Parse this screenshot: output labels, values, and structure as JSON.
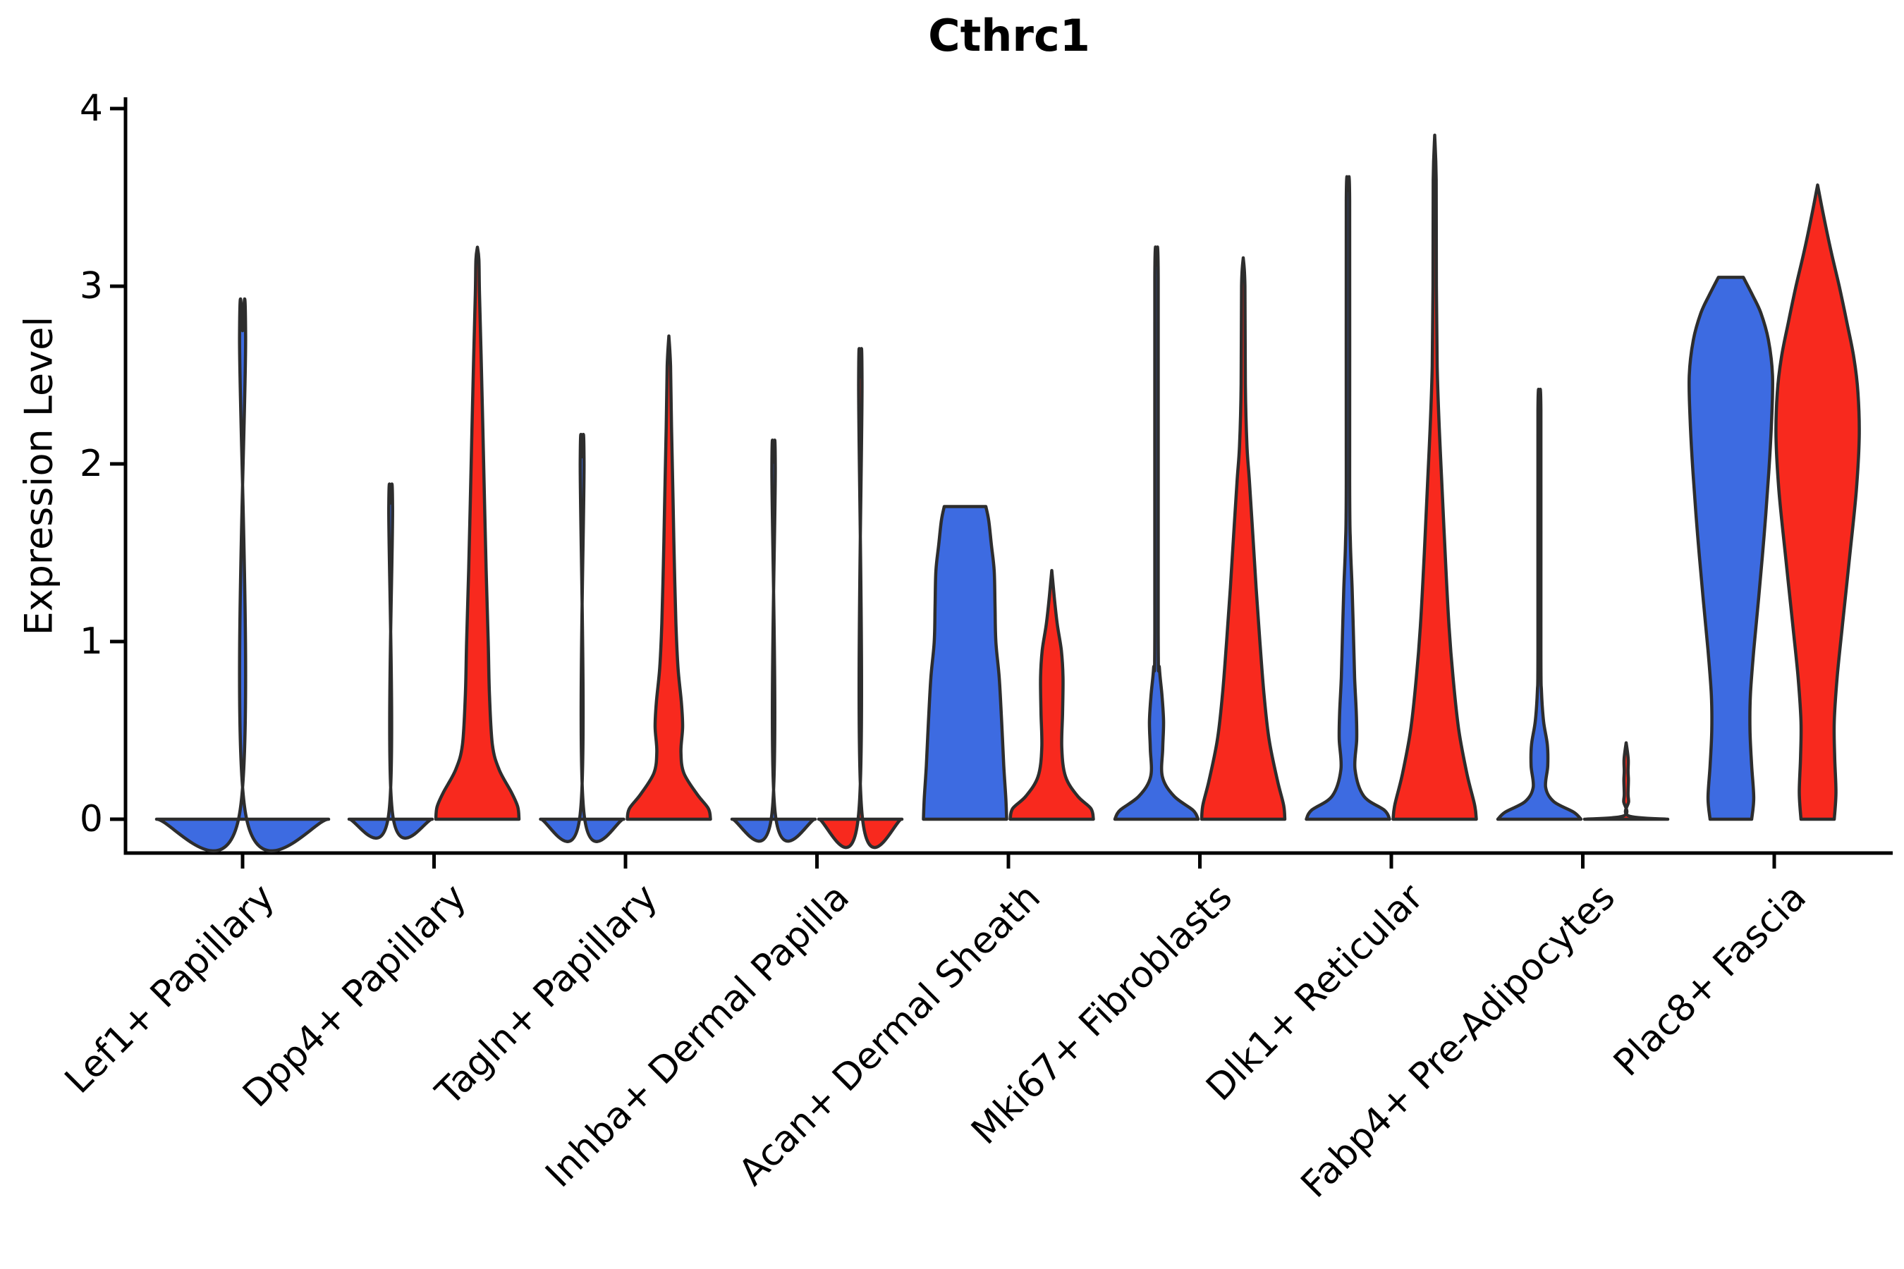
{
  "title": "Cthrc1",
  "y_axis": {
    "label": "Expression Level",
    "ticks": [
      "0",
      "1",
      "2",
      "3",
      "4"
    ]
  },
  "x_axis": {
    "categories": [
      "Lef1+ Papillary",
      "Dpp4+ Papillary",
      "Tagln+ Papillary",
      "Inhba+ Dermal Papilla",
      "Acan+ Dermal Sheath",
      "Mki67+ Fibroblasts",
      "Dlk1+ Reticular",
      "Fabp4+ Pre-Adipocytes",
      "Plac8+ Fascia"
    ]
  },
  "colors": {
    "blue": "#3D6BE1",
    "red": "#F8291E",
    "outline": "#2D2D2D"
  },
  "chart_data": {
    "type": "violin",
    "title": "Cthrc1",
    "ylabel": "Expression Level",
    "ylim": [
      0,
      4
    ],
    "yticks": [
      0,
      1,
      2,
      3,
      4
    ],
    "grid": false,
    "legend": "none",
    "categories": [
      "Lef1+ Papillary",
      "Dpp4+ Papillary",
      "Tagln+ Papillary",
      "Inhba+ Dermal Papilla",
      "Acan+ Dermal Sheath",
      "Mki67+ Fibroblasts",
      "Dlk1+ Reticular",
      "Fabp4+ Pre-Adipocytes",
      "Plac8+ Fascia"
    ],
    "series_colors": {
      "blue": "#3D6BE1",
      "red": "#F8291E"
    },
    "groups": [
      {
        "category": "Lef1+ Papillary",
        "violins": [
          {
            "series": "single",
            "color": "blue",
            "max": 2.75,
            "wide": true,
            "profile": [
              [
                0,
                1
              ],
              [
                0.03,
                0.035
              ],
              [
                2.72,
                0.035
              ],
              [
                2.75,
                0
              ]
            ]
          }
        ]
      },
      {
        "category": "Dpp4+ Papillary",
        "violins": [
          {
            "series": "blue",
            "color": "blue",
            "max": 1.78,
            "profile": [
              [
                0,
                1
              ],
              [
                0.03,
                0.045
              ],
              [
                1.75,
                0.045
              ],
              [
                1.78,
                0
              ]
            ]
          },
          {
            "series": "red",
            "color": "red",
            "max": 3.22,
            "profile": [
              [
                0,
                1
              ],
              [
                0.07,
                0.97
              ],
              [
                0.15,
                0.82
              ],
              [
                0.28,
                0.52
              ],
              [
                0.42,
                0.36
              ],
              [
                0.7,
                0.29
              ],
              [
                1.0,
                0.26
              ],
              [
                1.4,
                0.21
              ],
              [
                1.8,
                0.17
              ],
              [
                2.2,
                0.13
              ],
              [
                2.6,
                0.09
              ],
              [
                2.95,
                0.05
              ],
              [
                3.15,
                0.035
              ],
              [
                3.22,
                0
              ]
            ]
          }
        ]
      },
      {
        "category": "Tagln+ Papillary",
        "violins": [
          {
            "series": "blue",
            "color": "blue",
            "max": 2.04,
            "profile": [
              [
                0,
                1
              ],
              [
                0.03,
                0.045
              ],
              [
                2.01,
                0.045
              ],
              [
                2.04,
                0
              ]
            ]
          },
          {
            "series": "red",
            "color": "red",
            "max": 2.72,
            "profile": [
              [
                0,
                1
              ],
              [
                0.06,
                0.95
              ],
              [
                0.14,
                0.68
              ],
              [
                0.26,
                0.36
              ],
              [
                0.38,
                0.29
              ],
              [
                0.52,
                0.33
              ],
              [
                0.66,
                0.3
              ],
              [
                0.85,
                0.22
              ],
              [
                1.1,
                0.17
              ],
              [
                1.45,
                0.13
              ],
              [
                1.8,
                0.1
              ],
              [
                2.2,
                0.065
              ],
              [
                2.55,
                0.04
              ],
              [
                2.72,
                0
              ]
            ]
          }
        ]
      },
      {
        "category": "Inhba+ Dermal Papilla",
        "violins": [
          {
            "series": "blue",
            "color": "blue",
            "max": 2.01,
            "profile": [
              [
                0,
                1
              ],
              [
                0.03,
                0.04
              ],
              [
                1.98,
                0.04
              ],
              [
                2.01,
                0
              ]
            ]
          },
          {
            "series": "red",
            "color": "red",
            "max": 2.49,
            "profile": [
              [
                0,
                1
              ],
              [
                0.03,
                0.04
              ],
              [
                2.46,
                0.04
              ],
              [
                2.49,
                0
              ]
            ]
          }
        ]
      },
      {
        "category": "Acan+ Dermal Sheath",
        "violins": [
          {
            "series": "blue",
            "color": "blue",
            "max": 1.76,
            "profile": [
              [
                0,
                1
              ],
              [
                0.12,
                0.98
              ],
              [
                0.3,
                0.93
              ],
              [
                0.55,
                0.88
              ],
              [
                0.8,
                0.82
              ],
              [
                1.0,
                0.74
              ],
              [
                1.2,
                0.72
              ],
              [
                1.4,
                0.7
              ],
              [
                1.55,
                0.63
              ],
              [
                1.68,
                0.57
              ],
              [
                1.76,
                0.5
              ]
            ]
          },
          {
            "series": "red",
            "color": "red",
            "max": 1.4,
            "profile": [
              [
                0,
                1
              ],
              [
                0.06,
                0.94
              ],
              [
                0.13,
                0.62
              ],
              [
                0.24,
                0.33
              ],
              [
                0.4,
                0.24
              ],
              [
                0.6,
                0.26
              ],
              [
                0.8,
                0.27
              ],
              [
                0.95,
                0.23
              ],
              [
                1.1,
                0.13
              ],
              [
                1.25,
                0.06
              ],
              [
                1.4,
                0
              ]
            ]
          }
        ]
      },
      {
        "category": "Mki67+ Fibroblasts",
        "violins": [
          {
            "series": "blue",
            "color": "blue",
            "max": 3.12,
            "profile": [
              [
                0,
                1
              ],
              [
                0.05,
                0.88
              ],
              [
                0.13,
                0.42
              ],
              [
                0.24,
                0.14
              ],
              [
                0.4,
                0.15
              ],
              [
                0.55,
                0.17
              ],
              [
                0.7,
                0.13
              ],
              [
                0.85,
                0.07
              ],
              [
                1.05,
                0.04
              ],
              [
                3.05,
                0.04
              ],
              [
                3.12,
                0
              ]
            ]
          },
          {
            "series": "red",
            "color": "red",
            "max": 3.16,
            "profile": [
              [
                0,
                1
              ],
              [
                0.08,
                0.97
              ],
              [
                0.22,
                0.82
              ],
              [
                0.45,
                0.62
              ],
              [
                0.7,
                0.5
              ],
              [
                1.0,
                0.4
              ],
              [
                1.3,
                0.31
              ],
              [
                1.6,
                0.23
              ],
              [
                1.9,
                0.15
              ],
              [
                2.1,
                0.09
              ],
              [
                2.45,
                0.05
              ],
              [
                3.0,
                0.04
              ],
              [
                3.16,
                0
              ]
            ]
          }
        ]
      },
      {
        "category": "Dlk1+ Reticular",
        "violins": [
          {
            "series": "blue",
            "color": "blue",
            "max": 3.54,
            "profile": [
              [
                0,
                1
              ],
              [
                0.05,
                0.88
              ],
              [
                0.13,
                0.38
              ],
              [
                0.28,
                0.17
              ],
              [
                0.45,
                0.21
              ],
              [
                0.6,
                0.2
              ],
              [
                0.8,
                0.16
              ],
              [
                1.05,
                0.13
              ],
              [
                1.3,
                0.1
              ],
              [
                1.55,
                0.06
              ],
              [
                1.9,
                0.04
              ],
              [
                3.48,
                0.04
              ],
              [
                3.54,
                0
              ]
            ]
          },
          {
            "series": "red",
            "color": "red",
            "max": 3.85,
            "profile": [
              [
                0,
                1
              ],
              [
                0.08,
                0.96
              ],
              [
                0.25,
                0.78
              ],
              [
                0.5,
                0.58
              ],
              [
                0.8,
                0.44
              ],
              [
                1.1,
                0.34
              ],
              [
                1.5,
                0.25
              ],
              [
                1.9,
                0.17
              ],
              [
                2.2,
                0.11
              ],
              [
                2.55,
                0.06
              ],
              [
                3.0,
                0.04
              ],
              [
                3.6,
                0.035
              ],
              [
                3.85,
                0
              ]
            ]
          }
        ]
      },
      {
        "category": "Fabp4+ Pre-Adipocytes",
        "violins": [
          {
            "series": "blue",
            "color": "blue",
            "max": 2.36,
            "profile": [
              [
                0,
                1
              ],
              [
                0.04,
                0.82
              ],
              [
                0.1,
                0.34
              ],
              [
                0.18,
                0.15
              ],
              [
                0.3,
                0.2
              ],
              [
                0.42,
                0.19
              ],
              [
                0.55,
                0.1
              ],
              [
                0.72,
                0.05
              ],
              [
                0.95,
                0.035
              ],
              [
                2.3,
                0.035
              ],
              [
                2.36,
                0
              ]
            ]
          },
          {
            "series": "red",
            "color": "red",
            "max": 0.43,
            "profile": [
              [
                0,
                1
              ],
              [
                0.02,
                0.05
              ],
              [
                0.1,
                0.06
              ],
              [
                0.14,
                0.045
              ],
              [
                0.22,
                0.055
              ],
              [
                0.27,
                0.045
              ],
              [
                0.34,
                0.05
              ],
              [
                0.43,
                0
              ]
            ]
          }
        ]
      },
      {
        "category": "Plac8+ Fascia",
        "violins": [
          {
            "series": "blue",
            "color": "blue",
            "max": 3.05,
            "profile": [
              [
                0,
                0.5
              ],
              [
                0.12,
                0.55
              ],
              [
                0.3,
                0.5
              ],
              [
                0.5,
                0.46
              ],
              [
                0.7,
                0.47
              ],
              [
                0.95,
                0.55
              ],
              [
                1.25,
                0.67
              ],
              [
                1.6,
                0.8
              ],
              [
                1.95,
                0.91
              ],
              [
                2.25,
                0.98
              ],
              [
                2.5,
                1.0
              ],
              [
                2.7,
                0.9
              ],
              [
                2.85,
                0.72
              ],
              [
                2.95,
                0.52
              ],
              [
                3.05,
                0.3
              ]
            ]
          },
          {
            "series": "red",
            "color": "red",
            "max": 3.57,
            "profile": [
              [
                0,
                0.4
              ],
              [
                0.15,
                0.44
              ],
              [
                0.35,
                0.41
              ],
              [
                0.55,
                0.4
              ],
              [
                0.8,
                0.47
              ],
              [
                1.1,
                0.6
              ],
              [
                1.5,
                0.78
              ],
              [
                1.85,
                0.93
              ],
              [
                2.15,
                1.0
              ],
              [
                2.4,
                0.97
              ],
              [
                2.6,
                0.87
              ],
              [
                2.8,
                0.7
              ],
              [
                3.0,
                0.52
              ],
              [
                3.2,
                0.32
              ],
              [
                3.4,
                0.14
              ],
              [
                3.57,
                0
              ]
            ]
          }
        ]
      }
    ]
  }
}
